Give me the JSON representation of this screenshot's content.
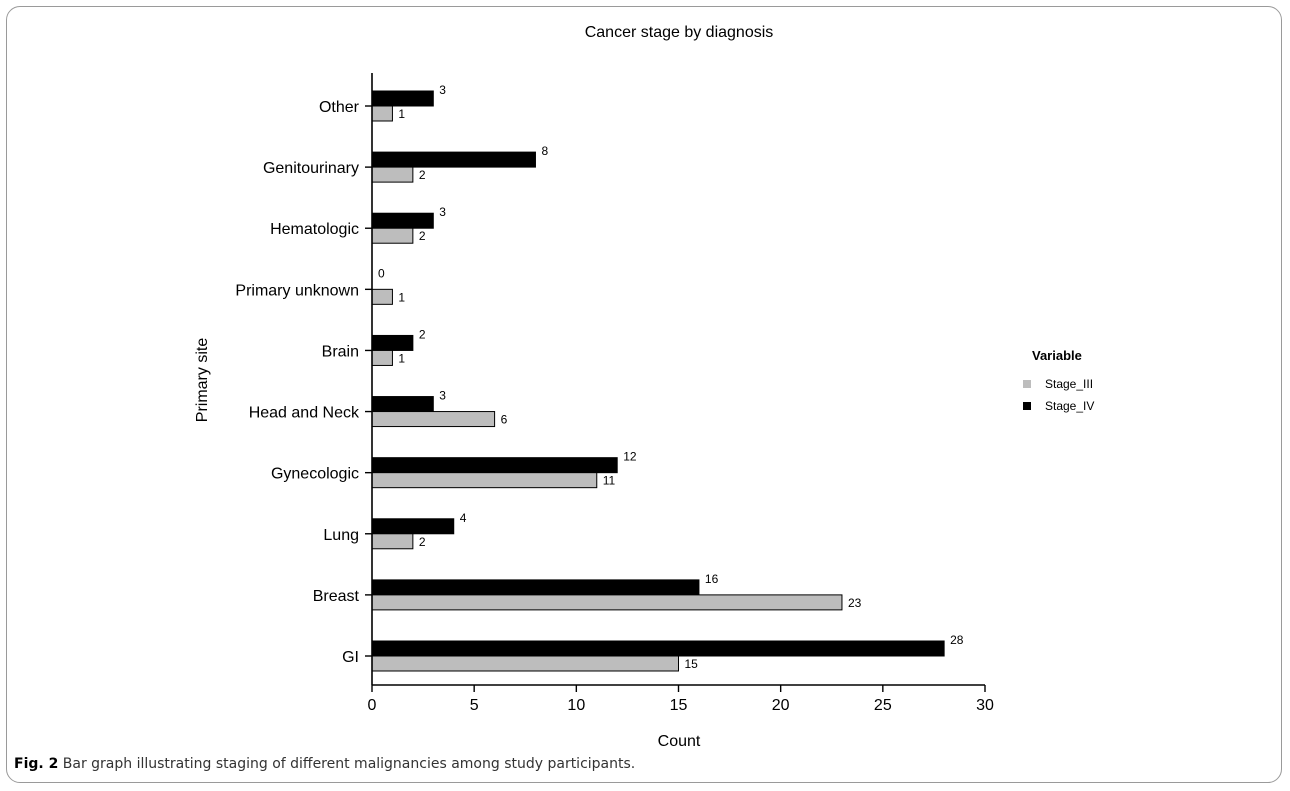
{
  "chart_data": {
    "type": "bar",
    "orientation": "horizontal",
    "title": "Cancer stage by diagnosis",
    "xlabel": "Count",
    "ylabel": "Primary site",
    "xlim": [
      0,
      30
    ],
    "xticks": [
      0,
      5,
      10,
      15,
      20,
      25,
      30
    ],
    "categories": [
      "Other",
      "Genitourinary",
      "Hematologic",
      "Primary unknown",
      "Brain",
      "Head and Neck",
      "Gynecologic",
      "Lung",
      "Breast",
      "GI"
    ],
    "series": [
      {
        "name": "Stage_III",
        "color": "#bdbdbd",
        "values": [
          1,
          2,
          2,
          1,
          1,
          6,
          11,
          2,
          23,
          15
        ]
      },
      {
        "name": "Stage_IV",
        "color": "#000000",
        "values": [
          3,
          8,
          3,
          0,
          2,
          3,
          12,
          4,
          16,
          28
        ]
      }
    ],
    "legend": {
      "title": "Variable",
      "position": "right"
    },
    "grid": false,
    "data_labels": true
  },
  "caption": {
    "lead": "Fig. 2",
    "text": " Bar graph illustrating staging of different malignancies among study participants."
  }
}
